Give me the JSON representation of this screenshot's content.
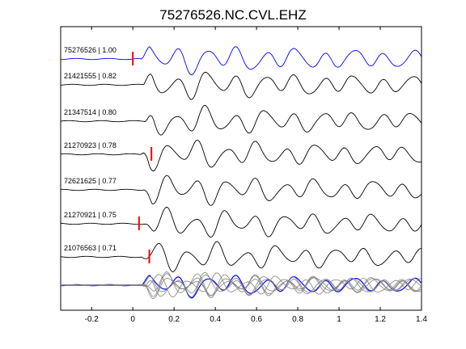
{
  "chart_data": {
    "type": "line",
    "title": "75276526.NC.CVL.EHZ",
    "xlim": [
      -0.35,
      1.4
    ],
    "x_ticks": [
      -0.2,
      0,
      0.2,
      0.4,
      0.6,
      0.8,
      1,
      1.2,
      1.4
    ],
    "x_tick_labels": [
      "-0.2",
      "0",
      "0.2",
      "0.4",
      "0.6",
      "0.8",
      "1",
      "1.2",
      "1.4"
    ],
    "grid": false,
    "colors": {
      "reference": "#0000ff",
      "trace": "#000000",
      "stack": "#808080",
      "pick": "#ff0000"
    },
    "traces": [
      {
        "label": "75276526 | 1.00",
        "color": "#0000ff",
        "pick": 0.0
      },
      {
        "label": "21421555 | 0.82",
        "color": "#000000",
        "pick": null
      },
      {
        "label": "21347514 | 0.80",
        "color": "#000000",
        "pick": null
      },
      {
        "label": "21270923 | 0.78",
        "color": "#000000",
        "pick": 0.09
      },
      {
        "label": "72621625 | 0.77",
        "color": "#000000",
        "pick": null
      },
      {
        "label": "21270921 | 0.75",
        "color": "#000000",
        "pick": 0.03
      },
      {
        "label": "21076563 | 0.71",
        "color": "#000000",
        "pick": 0.08
      }
    ]
  }
}
